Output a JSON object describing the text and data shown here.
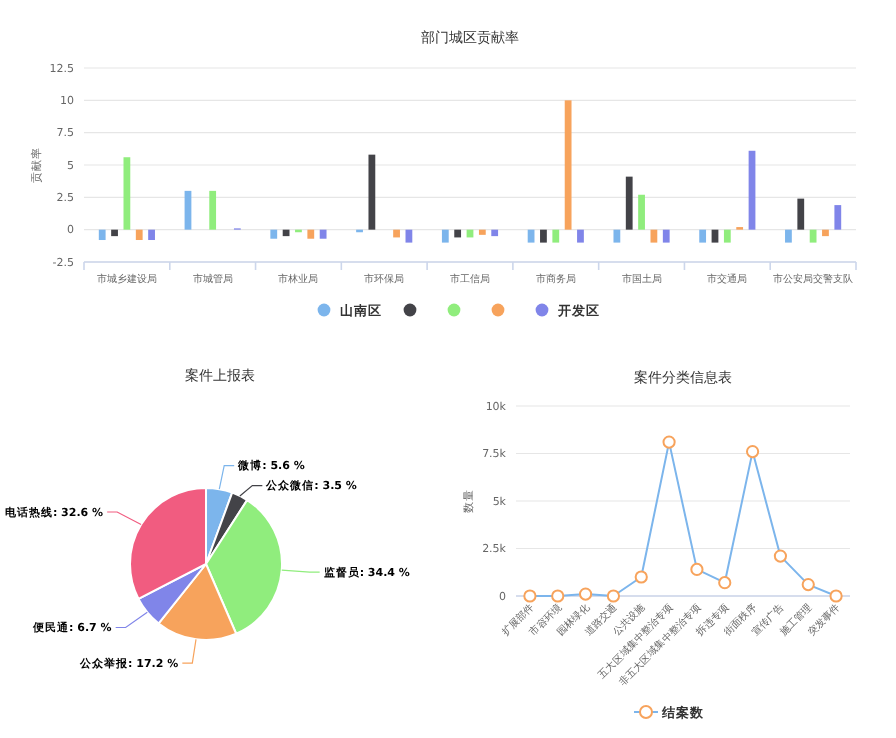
{
  "chart_data": [
    {
      "type": "bar",
      "title": "部门城区贡献率",
      "ylabel": "贡献率",
      "categories": [
        "市城乡建设局",
        "市城管局",
        "市林业局",
        "市环保局",
        "市工信局",
        "市商务局",
        "市国土局",
        "市交通局",
        "市公安局交警支队"
      ],
      "series": [
        {
          "name": "山南区",
          "color": "#7cb5ec",
          "values": [
            -0.8,
            3.0,
            -0.7,
            -0.2,
            -1.0,
            -1.0,
            -1.0,
            -1.0,
            -1.0
          ]
        },
        {
          "name": null,
          "color": "#434348",
          "values": [
            -0.5,
            0,
            -0.5,
            5.8,
            -0.6,
            -1.0,
            4.1,
            -1.0,
            2.4
          ]
        },
        {
          "name": null,
          "color": "#90ed7d",
          "values": [
            5.6,
            3.0,
            -0.2,
            0,
            -0.6,
            -1.0,
            2.7,
            -1.0,
            -1.0
          ]
        },
        {
          "name": null,
          "color": "#f7a35c",
          "values": [
            -0.8,
            0,
            -0.7,
            -0.6,
            -0.4,
            10,
            -1.0,
            0.2,
            -0.5
          ]
        },
        {
          "name": "开发区",
          "color": "#8085e9",
          "values": [
            -0.8,
            0.1,
            -0.7,
            -1.0,
            -0.5,
            -1.0,
            -1.0,
            6.1,
            1.9
          ]
        }
      ],
      "ylim": [
        -2.5,
        12.5
      ],
      "yticks": [
        -2.5,
        0,
        2.5,
        5,
        7.5,
        10,
        12.5
      ],
      "grid": "y",
      "legend": "bottom"
    },
    {
      "type": "pie",
      "title": "案件上报表",
      "categories": [
        "微博",
        "公众微信",
        "监督员",
        "公众举报",
        "便民通",
        "电话热线"
      ],
      "values": [
        5.6,
        3.5,
        34.4,
        17.2,
        6.7,
        32.6
      ],
      "value_labels": [
        "5.6 %",
        "3.5 %",
        "34.4 %",
        "17.2 %",
        "6.7 %",
        "32.6 %"
      ],
      "colors": [
        "#7cb5ec",
        "#434348",
        "#90ed7d",
        "#f7a35c",
        "#8085e9",
        "#f15c80"
      ]
    },
    {
      "type": "line",
      "title": "案件分类信息表",
      "ylabel": "数量",
      "categories": [
        "扩展部件",
        "市容环境",
        "园林绿化",
        "道路交通",
        "公共设施",
        "五大区域集中整治专项",
        "非五大区域集中整治专项",
        "拆违专项",
        "街面秩序",
        "宣传广告",
        "施工管理",
        "突发事件"
      ],
      "series": [
        {
          "name": "结案数",
          "color": "#7cb5ec",
          "colors": [
            "#f7a35c",
            "#f7a35c",
            "#f7a35c",
            "#f7a35c",
            "#f7a35c",
            "#f7a35c",
            "#f7a35c",
            "#f7a35c",
            "#f7a35c",
            "#f7a35c",
            "#f7a35c",
            "#f7a35c"
          ],
          "values": [
            0,
            0,
            100,
            0,
            1000,
            8100,
            1400,
            700,
            7600,
            2100,
            600,
            0
          ]
        }
      ],
      "ylim": [
        0,
        10000
      ],
      "yticks": [
        0,
        {
          "value": 2500,
          "label": "2.5k"
        },
        {
          "value": 5000,
          "label": "5k"
        },
        {
          "value": 7500,
          "label": "7.5k"
        },
        {
          "value": 10000,
          "label": "10k"
        }
      ],
      "grid": "y",
      "legend": "bottom",
      "marker": "circle"
    }
  ]
}
